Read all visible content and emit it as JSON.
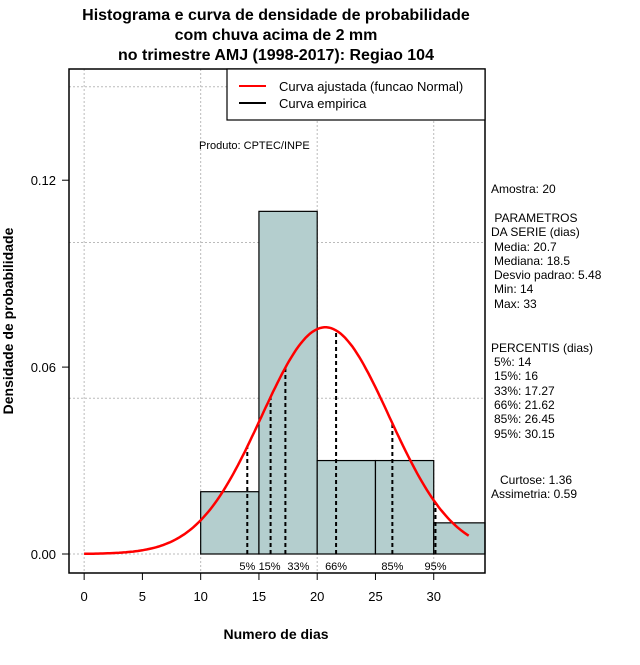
{
  "chart_data": {
    "type": "bar",
    "title": [
      "Histograma e curva de densidade de probabilidade",
      "com chuva acima de 2 mm",
      "no trimestre AMJ (1998-2017): Regiao 104"
    ],
    "xlabel": "Numero de dias",
    "ylabel": "Densidade de probabilidade",
    "xlim": [
      -1.3,
      34.4
    ],
    "ylim": [
      -0.0061,
      0.1557
    ],
    "xticks": [
      0,
      5,
      10,
      15,
      20,
      25,
      30
    ],
    "xtick_labels": [
      "0",
      "5",
      "10",
      "15",
      "20",
      "25",
      "30"
    ],
    "yticks": [
      0.0,
      0.06,
      0.12
    ],
    "ytick_labels": [
      "0.00",
      "0.06",
      "0.12"
    ],
    "grid": {
      "x": [
        0,
        10,
        20,
        30
      ],
      "y": [
        0,
        0.05,
        0.1,
        0.15
      ]
    },
    "histogram": {
      "bins": [
        [
          10,
          15
        ],
        [
          15,
          20
        ],
        [
          20,
          25
        ],
        [
          25,
          30
        ],
        [
          30,
          35
        ]
      ],
      "density": [
        0.02,
        0.11,
        0.03,
        0.03,
        0.01
      ],
      "color": "#b4cece"
    },
    "normal_curve": {
      "mean": 20.7,
      "sd": 5.48,
      "x_range": [
        0,
        33
      ],
      "color": "#ff0000"
    },
    "percentiles": [
      {
        "label": "5%",
        "value": 14
      },
      {
        "label": "15%",
        "value": 16
      },
      {
        "label": "33%",
        "value": 17.27
      },
      {
        "label": "66%",
        "value": 21.62
      },
      {
        "label": "85%",
        "value": 26.45
      },
      {
        "label": "95%",
        "value": 30.15
      }
    ],
    "legend": {
      "placement": "top-right",
      "entries": [
        {
          "label": "Curva ajustada (funcao Normal)",
          "color": "#ff0000"
        },
        {
          "label": "Curva empirica",
          "color": "#000000"
        }
      ]
    },
    "annotation": "Produto: CPTEC/INPE"
  },
  "side_panel": {
    "sample": "Amostra: 20",
    "params_title_1": " PARAMETROS",
    "params_title_2": "DA SERIE (dias)",
    "params": [
      " Media: 20.7",
      " Mediana: 18.5",
      " Desvio padrao: 5.48",
      " Min: 14",
      " Max: 33"
    ],
    "percentis_title": "PERCENTIS (dias)",
    "percentis": [
      " 5%: 14",
      " 15%: 16",
      " 33%: 17.27",
      " 66%: 21.62",
      " 85%: 26.45",
      " 95%: 30.15"
    ],
    "curtose": "  Curtose: 1.36",
    "assimetria": "Assimetria: 0.59"
  }
}
